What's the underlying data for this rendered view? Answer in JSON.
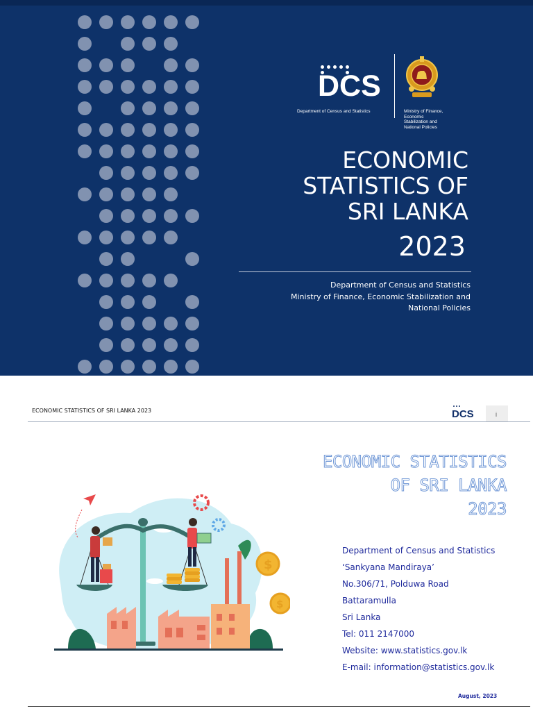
{
  "cover": {
    "dcs_logo_text": "DCS",
    "dcs_caption": "Department of Census and Statistics",
    "ministry_caption": [
      "Ministry of Finance,",
      "Economic",
      "Stabilization and",
      "National Policies"
    ],
    "title_lines": [
      "ECONOMIC",
      "STATISTICS OF",
      "SRI LANKA"
    ],
    "year": "2023",
    "org_lines": [
      "Department of Census and Statistics",
      "Ministry of Finance, Economic Stabilization and",
      "National Policies"
    ],
    "colors": {
      "background": "#0e3269",
      "dots": "#8192b0"
    }
  },
  "inner_page": {
    "running_head": "ECONOMIC STATISTICS OF SRI LANKA 2023",
    "mini_logo_text": "DCS",
    "page_number": "i",
    "title_lines": [
      "ECONOMIC STATISTICS",
      "OF SRI LANKA",
      "2023"
    ],
    "address_lines": [
      "Department of Census and Statistics",
      "‘Sankyana Mandiraya’",
      "No.306/71, Polduwa Road",
      "Battaramulla",
      "Sri Lanka",
      "Tel: 011 2147000",
      "Website: www.statistics.gov.lk",
      "E-mail: information@statistics.gov.lk"
    ],
    "date": "August, 2023",
    "colors": {
      "address_text": "#1f2a9c",
      "title_outline": "#6f97d6"
    }
  }
}
